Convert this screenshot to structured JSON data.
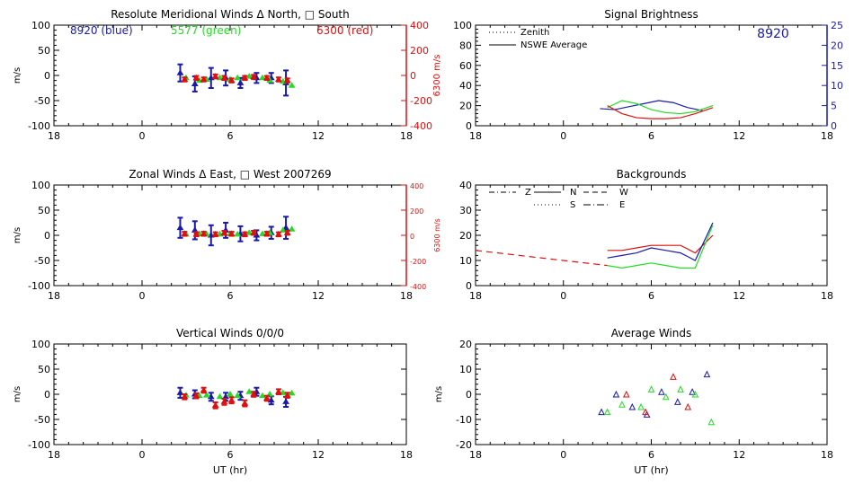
{
  "colors": {
    "blue": "#1a1aa8",
    "green": "#22dd22",
    "red": "#dd1111",
    "black": "#000000"
  },
  "chart_data": [
    {
      "id": "meridional",
      "type": "scatter",
      "title": "Resolute Meridional Winds Δ North, □ South",
      "ylabel": "m/s",
      "ylabel_right": "6300 m/s",
      "xlabel": "",
      "xlim": [
        -6,
        18
      ],
      "ylim": [
        -100,
        100
      ],
      "ylim_right": [
        -400,
        400
      ],
      "xticks": [
        "18",
        "0",
        "6",
        "12",
        "18"
      ],
      "yticks": [
        "-100",
        "-50",
        "0",
        "50",
        "100"
      ],
      "yticks_right": [
        "-400",
        "-200",
        "0",
        "200",
        "400"
      ],
      "legend": [
        {
          "text": "8920 (blue)",
          "color": "blue"
        },
        {
          "text": "5577 (green)",
          "color": "green"
        },
        {
          "text": "6300 (red)",
          "color": "red"
        }
      ],
      "series": [
        {
          "name": "8920",
          "color": "blue",
          "errorbars": true,
          "x": [
            2.6,
            3.6,
            4.7,
            5.7,
            6.7,
            7.8,
            8.8,
            9.8
          ],
          "y": [
            5,
            -17,
            -5,
            -5,
            -15,
            -5,
            -5,
            -15
          ],
          "err": [
            17,
            15,
            20,
            15,
            10,
            10,
            10,
            25
          ]
        },
        {
          "name": "5577",
          "color": "green",
          "x": [
            3.0,
            3.9,
            4.4,
            5.3,
            6.0,
            6.5,
            7.3,
            8.2,
            8.7,
            9.6,
            10.2
          ],
          "y": [
            -5,
            -10,
            -8,
            -5,
            -8,
            -5,
            -2,
            -5,
            -10,
            -12,
            -20
          ]
        },
        {
          "name": "6300",
          "color": "red",
          "errorbars": true,
          "x": [
            2.9,
            3.7,
            4.2,
            5.0,
            5.6,
            6.1,
            7.0,
            7.6,
            8.5,
            9.3,
            9.9
          ],
          "y": [
            -8,
            -5,
            -8,
            -2,
            -5,
            -10,
            -5,
            -3,
            -5,
            -8,
            -10
          ],
          "err": [
            4,
            4,
            4,
            4,
            4,
            4,
            4,
            4,
            4,
            4,
            4
          ]
        }
      ]
    },
    {
      "id": "brightness",
      "type": "line",
      "title": "Signal Brightness",
      "annotation": "8920",
      "xlim": [
        -6,
        18
      ],
      "ylim": [
        0,
        100
      ],
      "ylim_right": [
        0,
        25
      ],
      "xticks": [
        "18",
        "0",
        "6",
        "12",
        "18"
      ],
      "yticks": [
        "0",
        "20",
        "40",
        "60",
        "80",
        "100"
      ],
      "yticks_right": [
        "0",
        "5",
        "10",
        "15",
        "20",
        "25"
      ],
      "legend": [
        {
          "text": "Zenith",
          "style": "dotted"
        },
        {
          "text": "NSWE Average",
          "style": "solid"
        }
      ],
      "series": [
        {
          "name": "blue",
          "color": "blue",
          "x": [
            2.5,
            3.5,
            4.5,
            5.5,
            6.5,
            7.5,
            8.5,
            9.5
          ],
          "y": [
            17,
            16,
            19,
            22,
            25,
            23,
            18,
            15
          ]
        },
        {
          "name": "green",
          "color": "green",
          "x": [
            3.0,
            4.0,
            5.0,
            6.0,
            7.0,
            8.0,
            9.0,
            10.2
          ],
          "y": [
            18,
            25,
            22,
            16,
            13,
            12,
            14,
            20
          ]
        },
        {
          "name": "red",
          "color": "red",
          "x": [
            3.0,
            4.0,
            5.0,
            6.0,
            7.0,
            8.0,
            9.0,
            10.2
          ],
          "y": [
            20,
            12,
            8,
            7,
            7,
            8,
            12,
            18
          ]
        }
      ]
    },
    {
      "id": "zonal",
      "type": "scatter",
      "title": "Zonal Winds Δ East, □ West 2007269",
      "ylabel": "m/s",
      "ylabel_right": "6300 m/s",
      "xlim": [
        -6,
        18
      ],
      "ylim": [
        -100,
        100
      ],
      "ylim_right": [
        -400,
        400
      ],
      "xticks": [
        "18",
        "0",
        "6",
        "12",
        "18"
      ],
      "yticks": [
        "-100",
        "-50",
        "0",
        "50",
        "100"
      ],
      "yticks_right": [
        "-400",
        "-200",
        "0",
        "200",
        "400"
      ],
      "series": [
        {
          "name": "8920",
          "color": "blue",
          "errorbars": true,
          "x": [
            2.6,
            3.6,
            4.7,
            5.7,
            6.7,
            7.8,
            8.8,
            9.8
          ],
          "y": [
            15,
            10,
            0,
            10,
            3,
            0,
            5,
            15
          ],
          "err": [
            20,
            18,
            20,
            15,
            15,
            10,
            12,
            22
          ]
        },
        {
          "name": "5577",
          "color": "green",
          "x": [
            3.0,
            3.9,
            4.4,
            5.3,
            6.0,
            6.5,
            7.3,
            8.2,
            8.7,
            9.6,
            10.2
          ],
          "y": [
            2,
            3,
            2,
            2,
            3,
            2,
            5,
            3,
            5,
            10,
            12
          ]
        },
        {
          "name": "6300",
          "color": "red",
          "errorbars": true,
          "x": [
            2.9,
            3.7,
            4.2,
            5.0,
            5.6,
            6.1,
            7.0,
            7.6,
            8.5,
            9.3,
            9.9
          ],
          "y": [
            3,
            2,
            3,
            2,
            5,
            3,
            2,
            5,
            3,
            2,
            5
          ],
          "err": [
            4,
            4,
            4,
            4,
            4,
            4,
            4,
            4,
            4,
            4,
            4
          ]
        }
      ]
    },
    {
      "id": "backgrounds",
      "type": "line",
      "title": "Backgrounds",
      "xlim": [
        -6,
        18
      ],
      "ylim": [
        0,
        40
      ],
      "xticks": [
        "18",
        "0",
        "6",
        "12",
        "18"
      ],
      "yticks": [
        "0",
        "10",
        "20",
        "30",
        "40"
      ],
      "legend": [
        {
          "text": "Z",
          "style": "dashdot"
        },
        {
          "text": "N",
          "style": "solid"
        },
        {
          "text": "W",
          "style": "dashed"
        },
        {
          "text": "S",
          "style": "dotted"
        },
        {
          "text": "E",
          "style": "dashdotlong"
        }
      ],
      "series": [
        {
          "name": "red-historical",
          "color": "red",
          "dash": "7,5",
          "x": [
            -6,
            3
          ],
          "y": [
            14,
            8
          ]
        },
        {
          "name": "red",
          "color": "red",
          "x": [
            3,
            4,
            5,
            6,
            7,
            8,
            9,
            10.2
          ],
          "y": [
            14,
            14,
            15,
            16,
            16,
            16,
            13,
            20
          ]
        },
        {
          "name": "blue",
          "color": "blue",
          "x": [
            3,
            4,
            5,
            6,
            7,
            8,
            9,
            10.2
          ],
          "y": [
            11,
            12,
            13,
            15,
            14,
            13,
            10,
            25
          ]
        },
        {
          "name": "green",
          "color": "green",
          "x": [
            3,
            4,
            5,
            6,
            7,
            8,
            9,
            10.2
          ],
          "y": [
            8,
            7,
            8,
            9,
            8,
            7,
            7,
            24
          ]
        }
      ]
    },
    {
      "id": "vertical",
      "type": "scatter",
      "title": "Vertical Winds 0/0/0",
      "ylabel": "m/s",
      "xlabel": "UT (hr)",
      "xlim": [
        -6,
        18
      ],
      "ylim": [
        -100,
        100
      ],
      "xticks": [
        "18",
        "0",
        "6",
        "12",
        "18"
      ],
      "yticks": [
        "-100",
        "-50",
        "0",
        "50",
        "100"
      ],
      "series": [
        {
          "name": "8920",
          "color": "blue",
          "errorbars": true,
          "x": [
            2.6,
            3.6,
            4.7,
            5.7,
            6.7,
            7.8,
            8.8,
            9.8
          ],
          "y": [
            3,
            0,
            -5,
            -5,
            -3,
            5,
            -12,
            -15
          ],
          "err": [
            10,
            8,
            8,
            8,
            8,
            8,
            8,
            10
          ]
        },
        {
          "name": "5577",
          "color": "green",
          "x": [
            3.0,
            3.9,
            4.4,
            5.3,
            6.0,
            6.5,
            7.3,
            8.2,
            8.7,
            9.6,
            10.2
          ],
          "y": [
            -2,
            -3,
            -2,
            -5,
            0,
            -3,
            5,
            -3,
            0,
            3,
            2
          ]
        },
        {
          "name": "6300",
          "color": "red",
          "errorbars": true,
          "x": [
            2.9,
            3.7,
            4.2,
            5.0,
            5.6,
            6.1,
            7.0,
            7.6,
            8.5,
            9.3,
            9.9
          ],
          "y": [
            -5,
            -3,
            8,
            -22,
            -15,
            -12,
            -18,
            0,
            -8,
            5,
            -2
          ],
          "err": [
            5,
            5,
            5,
            6,
            6,
            6,
            6,
            5,
            5,
            5,
            5
          ]
        }
      ]
    },
    {
      "id": "average",
      "type": "scatter",
      "title": "Average Winds",
      "ylabel": "m/s",
      "xlabel": "UT (hr)",
      "xlim": [
        -6,
        18
      ],
      "ylim": [
        -20,
        20
      ],
      "xticks": [
        "18",
        "0",
        "6",
        "12",
        "18"
      ],
      "yticks": [
        "-20",
        "-10",
        "0",
        "10",
        "20"
      ],
      "series": [
        {
          "name": "blue",
          "color": "blue",
          "x": [
            2.6,
            3.6,
            4.7,
            5.7,
            6.7,
            7.8,
            8.8,
            9.8
          ],
          "y": [
            -7,
            0,
            -5,
            -8,
            1,
            -3,
            1,
            8
          ]
        },
        {
          "name": "green",
          "color": "green",
          "x": [
            3.0,
            4.0,
            5.3,
            6.0,
            7.0,
            8.0,
            9.0,
            10.1
          ],
          "y": [
            -7,
            -4,
            -5,
            2,
            -1,
            2,
            0,
            -11
          ]
        },
        {
          "name": "red",
          "color": "red",
          "x": [
            4.3,
            5.6,
            7.5,
            8.5
          ],
          "y": [
            0,
            -7,
            7,
            -5
          ]
        }
      ]
    }
  ]
}
